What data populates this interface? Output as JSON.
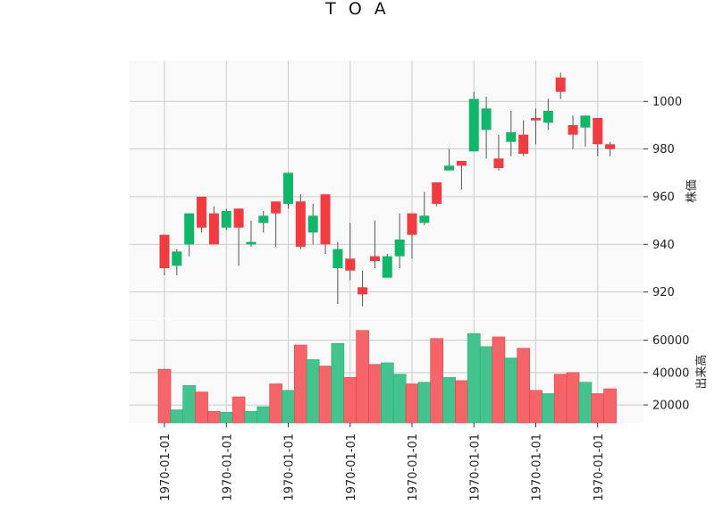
{
  "chart_data": {
    "type": "candlestick",
    "title": "T O A",
    "price_axis_label": "株価",
    "volume_axis_label": "出来高",
    "price_ylim": [
      909,
      1017
    ],
    "price_ticks": [
      920,
      940,
      960,
      980,
      1000
    ],
    "volume_ylim": [
      9000,
      73000
    ],
    "volume_ticks": [
      20000,
      40000,
      60000
    ],
    "x_tick_labels": [
      "1970-01-01",
      "1970-01-01",
      "1970-01-01",
      "1970-01-01",
      "1970-01-01",
      "1970-01-01",
      "1970-01-01",
      "1970-01-01"
    ],
    "x_tick_indices": [
      0,
      5,
      10,
      15,
      20,
      25,
      30,
      35
    ],
    "grid": true,
    "colors": {
      "up": "#10b769",
      "down": "#f23b40",
      "up_volume": "#45c38e",
      "down_volume": "#f46468",
      "wick": "#555555",
      "grid": "#cccccc",
      "panel_bg": "#f9f9f9"
    },
    "candles": [
      {
        "open": 944,
        "high": 944,
        "low": 927,
        "close": 930,
        "volume": 42000
      },
      {
        "open": 931,
        "high": 938,
        "low": 927,
        "close": 937,
        "volume": 17000
      },
      {
        "open": 940,
        "high": 953,
        "low": 935,
        "close": 953,
        "volume": 32000
      },
      {
        "open": 960,
        "high": 960,
        "low": 945,
        "close": 947,
        "volume": 28000
      },
      {
        "open": 953,
        "high": 956,
        "low": 940,
        "close": 940,
        "volume": 16000
      },
      {
        "open": 947,
        "high": 955,
        "low": 946,
        "close": 954,
        "volume": 15500
      },
      {
        "open": 955,
        "high": 955,
        "low": 931,
        "close": 947,
        "volume": 25000
      },
      {
        "open": 940,
        "high": 950,
        "low": 939,
        "close": 941,
        "volume": 16000
      },
      {
        "open": 949,
        "high": 954,
        "low": 945,
        "close": 952,
        "volume": 19000
      },
      {
        "open": 958,
        "high": 958,
        "low": 939,
        "close": 953,
        "volume": 33000
      },
      {
        "open": 957,
        "high": 970,
        "low": 955,
        "close": 970,
        "volume": 29000
      },
      {
        "open": 958,
        "high": 961,
        "low": 938,
        "close": 939,
        "volume": 57000
      },
      {
        "open": 945,
        "high": 957,
        "low": 940,
        "close": 952,
        "volume": 48000
      },
      {
        "open": 961,
        "high": 961,
        "low": 936,
        "close": 940,
        "volume": 44000
      },
      {
        "open": 930,
        "high": 941,
        "low": 915,
        "close": 938,
        "volume": 58000
      },
      {
        "open": 934,
        "high": 949,
        "low": 925,
        "close": 929,
        "volume": 37000
      },
      {
        "open": 922,
        "high": 929,
        "low": 914,
        "close": 919,
        "volume": 66000
      },
      {
        "open": 935,
        "high": 950,
        "low": 930,
        "close": 933,
        "volume": 45000
      },
      {
        "open": 926,
        "high": 936,
        "low": 926,
        "close": 935,
        "volume": 46000
      },
      {
        "open": 935,
        "high": 953,
        "low": 930,
        "close": 942,
        "volume": 39000
      },
      {
        "open": 953,
        "high": 953,
        "low": 934,
        "close": 944,
        "volume": 33000
      },
      {
        "open": 949,
        "high": 962,
        "low": 948,
        "close": 952,
        "volume": 34000
      },
      {
        "open": 966,
        "high": 966,
        "low": 956,
        "close": 957,
        "volume": 61000
      },
      {
        "open": 971,
        "high": 980,
        "low": 971,
        "close": 973,
        "volume": 37000
      },
      {
        "open": 975,
        "high": 975,
        "low": 963,
        "close": 973,
        "volume": 35000
      },
      {
        "open": 979,
        "high": 1004,
        "low": 979,
        "close": 1001,
        "volume": 64000
      },
      {
        "open": 988,
        "high": 1002,
        "low": 976,
        "close": 997,
        "volume": 56000
      },
      {
        "open": 976,
        "high": 986,
        "low": 971,
        "close": 972,
        "volume": 62000
      },
      {
        "open": 983,
        "high": 996,
        "low": 977,
        "close": 987,
        "volume": 49000
      },
      {
        "open": 986,
        "high": 992,
        "low": 977,
        "close": 978,
        "volume": 55000
      },
      {
        "open": 993,
        "high": 997,
        "low": 982,
        "close": 992,
        "volume": 29000
      },
      {
        "open": 991,
        "high": 1001,
        "low": 988,
        "close": 996,
        "volume": 27000
      },
      {
        "open": 1010,
        "high": 1012,
        "low": 1001,
        "close": 1004,
        "volume": 39000
      },
      {
        "open": 990,
        "high": 994,
        "low": 980,
        "close": 986,
        "volume": 40000
      },
      {
        "open": 989,
        "high": 994,
        "low": 981,
        "close": 994,
        "volume": 34000
      },
      {
        "open": 993,
        "high": 993,
        "low": 977,
        "close": 982,
        "volume": 27000
      },
      {
        "open": 982,
        "high": 983,
        "low": 977,
        "close": 980,
        "volume": 30000
      }
    ]
  }
}
